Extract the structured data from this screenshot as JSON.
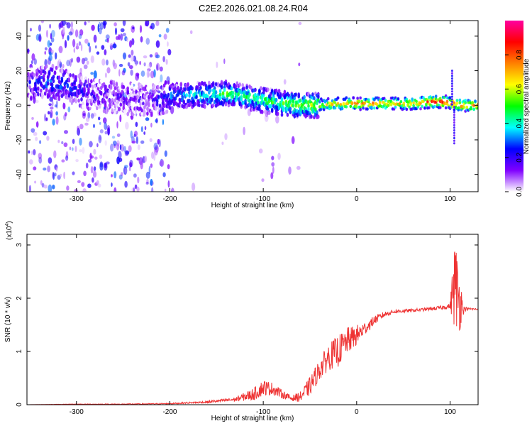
{
  "title": "C2E2.2026.021.08.24.R04",
  "chart_data": [
    {
      "type": "heatmap",
      "name": "spectrogram",
      "xlabel": "Height of straight line (km)",
      "ylabel": "Frequency (Hz)",
      "xlim": [
        -353,
        130
      ],
      "ylim": [
        -50,
        49
      ],
      "xticks": [
        -300,
        -200,
        -100,
        0,
        100
      ],
      "yticks": [
        -40,
        -20,
        0,
        20,
        40
      ],
      "colorbar": {
        "label": "Normalized spectral amplitude",
        "range": [
          0,
          1
        ],
        "ticks": [
          0.0,
          0.2,
          0.4,
          0.6,
          0.8
        ],
        "colors": [
          "#ffffff",
          "#8000ff",
          "#0000ff",
          "#00ffff",
          "#00ff00",
          "#ffff00",
          "#ff8000",
          "#ff0000",
          "#ff00a0"
        ]
      },
      "ridge": {
        "x": [
          -350,
          -330,
          -310,
          -295,
          -280,
          -250,
          -220,
          -200,
          -180,
          -160,
          -140,
          -120,
          -100,
          -80,
          -60,
          -40,
          -20,
          0,
          20,
          40,
          60,
          80,
          95,
          110,
          130
        ],
        "freq": [
          12,
          14,
          11,
          8,
          6,
          4,
          3,
          5,
          6,
          6,
          7,
          5,
          3,
          1,
          0,
          0,
          1,
          1,
          1,
          1,
          1,
          2,
          2,
          0,
          0
        ],
        "amplitude": [
          0.2,
          0.3,
          0.25,
          0.2,
          0.15,
          0.12,
          0.12,
          0.3,
          0.35,
          0.4,
          0.5,
          0.45,
          0.45,
          0.5,
          0.55,
          0.6,
          0.7,
          0.75,
          0.75,
          0.7,
          0.7,
          0.85,
          0.9,
          0.8,
          0.75
        ]
      },
      "noise_region_x": [
        -353,
        -200
      ],
      "spike_x": 103,
      "spike_freq_range": [
        -22,
        21
      ]
    },
    {
      "type": "line",
      "name": "snr",
      "xlabel": "Height of straight line (km)",
      "ylabel": "SNR (10 * v/v)",
      "scale_label": "(x10",
      "scale_exp": "4",
      "xlim": [
        -353,
        130
      ],
      "ylim": [
        0,
        3.2
      ],
      "xticks": [
        -300,
        -200,
        -100,
        0,
        100
      ],
      "yticks": [
        0,
        1,
        2,
        3
      ],
      "color": "#ee3333",
      "series": [
        {
          "name": "SNR",
          "x": [
            -353,
            -300,
            -250,
            -200,
            -160,
            -130,
            -110,
            -100,
            -90,
            -80,
            -70,
            -60,
            -50,
            -40,
            -30,
            -20,
            -10,
            0,
            10,
            20,
            30,
            40,
            60,
            80,
            90,
            100,
            105,
            110,
            115,
            120,
            130
          ],
          "y": [
            0.0,
            0.01,
            0.01,
            0.02,
            0.05,
            0.1,
            0.2,
            0.32,
            0.3,
            0.2,
            0.12,
            0.15,
            0.35,
            0.65,
            0.9,
            1.0,
            1.2,
            1.3,
            1.45,
            1.6,
            1.7,
            1.75,
            1.77,
            1.8,
            1.82,
            1.85,
            2.3,
            1.95,
            1.8,
            1.8,
            1.79
          ],
          "noise": [
            0.0,
            0.005,
            0.008,
            0.01,
            0.02,
            0.04,
            0.12,
            0.15,
            0.12,
            0.08,
            0.05,
            0.1,
            0.18,
            0.2,
            0.25,
            0.3,
            0.25,
            0.2,
            0.12,
            0.08,
            0.05,
            0.04,
            0.03,
            0.03,
            0.04,
            0.05,
            0.9,
            0.6,
            0.05,
            0.02,
            0.02
          ]
        }
      ]
    }
  ]
}
